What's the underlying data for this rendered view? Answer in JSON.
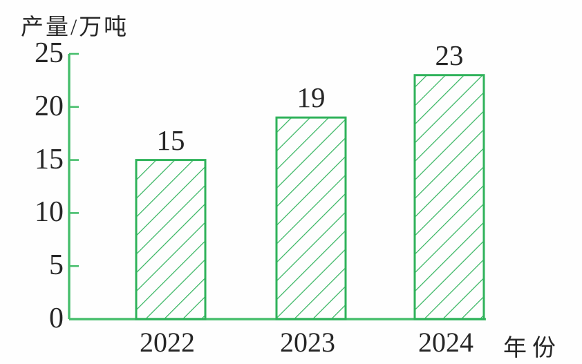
{
  "chart_data": {
    "type": "bar",
    "title": "",
    "ylabel": "产量/万吨",
    "xlabel": "年份",
    "categories": [
      "2022",
      "2023",
      "2024"
    ],
    "values": [
      15,
      19,
      23
    ],
    "yticks": [
      0,
      5,
      10,
      15,
      20,
      25
    ],
    "ylim": [
      0,
      25
    ],
    "grid": false,
    "legend": "none",
    "bar_style": "diagonal-hatch",
    "colors": {
      "bar_outline": "#2fb25a",
      "bar_hatch": "#35b560",
      "axis": "#46be6c",
      "text": "#262626",
      "background": "#fefefe"
    }
  }
}
